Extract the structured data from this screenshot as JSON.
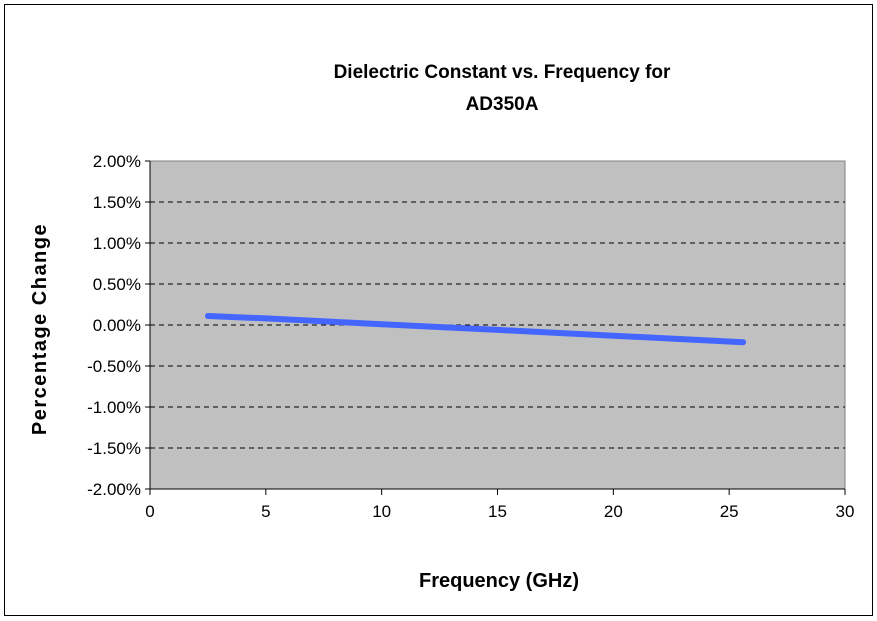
{
  "chart_data": {
    "type": "line",
    "title": "Dielectric Constant vs. Frequency  for AD350A",
    "title_lines": [
      "Dielectric Constant vs. Frequency  for",
      "AD350A"
    ],
    "xlabel": "Frequency (GHz)",
    "ylabel": "Percentage Change",
    "xlim": [
      0,
      30
    ],
    "ylim": [
      -0.02,
      0.02
    ],
    "x_ticks": [
      0,
      5,
      10,
      15,
      20,
      25,
      30
    ],
    "x_tick_labels": [
      "0",
      "5",
      "10",
      "15",
      "20",
      "25",
      "30"
    ],
    "y_ticks": [
      0.02,
      0.015,
      0.01,
      0.005,
      0,
      -0.005,
      -0.01,
      -0.015,
      -0.02
    ],
    "y_tick_labels": [
      "2.00%",
      "1.50%",
      "1.00%",
      "0.50%",
      "0.00%",
      "-0.50%",
      "-1.00%",
      "-1.50%",
      "-2.00%"
    ],
    "grid": "horizontal dashed",
    "legend": "none",
    "series": [
      {
        "x": [
          2.5,
          5,
          10,
          15,
          20,
          25.6
        ],
        "y": [
          0.0011,
          0.0008,
          0.0001,
          -0.0006,
          -0.0013,
          -0.0021
        ]
      }
    ],
    "colors": {
      "plot_background": "#c0c0c0",
      "line": "#4466ff",
      "grid": "#000000",
      "frame": "#000000"
    }
  }
}
